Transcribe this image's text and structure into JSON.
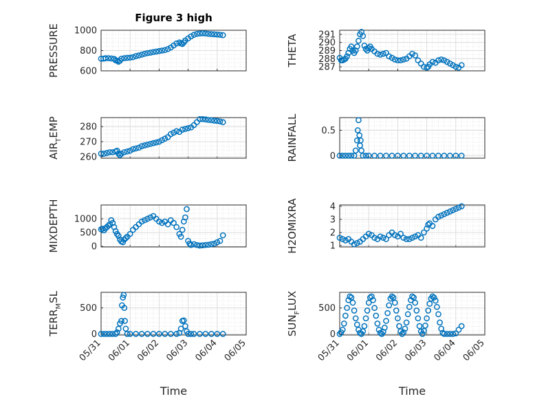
{
  "chart_data": [
    {
      "type": "scatter",
      "title": "Figure 3 high",
      "ylabel": {
        "main": "PRESSURE",
        "sub": "",
        "tail": ""
      },
      "ylim": [
        600,
        1000
      ],
      "yticks": [
        600,
        800,
        1000
      ],
      "xlim": [
        0,
        5
      ],
      "xticklabels": [],
      "xlabel": "",
      "series": [
        {
          "x": [
            0.0,
            0.08,
            0.15,
            0.25,
            0.35,
            0.45,
            0.5,
            0.55,
            0.6,
            0.65,
            0.7,
            0.8,
            0.9,
            1.0,
            1.1,
            1.2,
            1.3,
            1.4,
            1.5,
            1.6,
            1.7,
            1.8,
            1.9,
            2.0,
            2.1,
            2.2,
            2.3,
            2.4,
            2.5,
            2.6,
            2.7,
            2.75,
            2.8,
            2.85,
            2.9,
            3.0,
            3.1,
            3.2,
            3.3,
            3.4,
            3.5,
            3.6,
            3.7,
            3.8,
            3.9,
            4.0,
            4.1,
            4.2
          ],
          "y": [
            720,
            720,
            725,
            725,
            722,
            718,
            705,
            700,
            690,
            700,
            720,
            725,
            728,
            730,
            735,
            745,
            752,
            760,
            768,
            775,
            780,
            785,
            790,
            795,
            800,
            805,
            815,
            830,
            850,
            870,
            880,
            870,
            865,
            880,
            900,
            920,
            940,
            955,
            965,
            968,
            970,
            968,
            965,
            962,
            960,
            958,
            955,
            952
          ]
        }
      ]
    },
    {
      "type": "scatter",
      "title": "",
      "ylabel": {
        "main": "THETA",
        "sub": "",
        "tail": ""
      },
      "ylim": [
        286.5,
        291.5
      ],
      "yticks": [
        287,
        288,
        289,
        290,
        291
      ],
      "xlim": [
        0,
        5
      ],
      "xticklabels": [],
      "xlabel": "",
      "series": [
        {
          "x": [
            0.0,
            0.05,
            0.1,
            0.15,
            0.2,
            0.25,
            0.3,
            0.35,
            0.4,
            0.45,
            0.5,
            0.55,
            0.6,
            0.65,
            0.7,
            0.75,
            0.8,
            0.85,
            0.9,
            0.95,
            1.0,
            1.05,
            1.1,
            1.2,
            1.3,
            1.4,
            1.5,
            1.6,
            1.7,
            1.8,
            1.9,
            2.0,
            2.1,
            2.2,
            2.3,
            2.4,
            2.5,
            2.6,
            2.7,
            2.8,
            2.9,
            3.0,
            3.05,
            3.1,
            3.2,
            3.3,
            3.4,
            3.5,
            3.6,
            3.7,
            3.8,
            3.9,
            4.0,
            4.1,
            4.2
          ],
          "y": [
            288.1,
            287.8,
            287.8,
            287.9,
            288.0,
            288.3,
            288.7,
            289.2,
            289.5,
            289.0,
            288.7,
            289.0,
            289.5,
            290.2,
            291.0,
            291.3,
            290.8,
            289.6,
            289.2,
            289.0,
            289.3,
            289.5,
            289.2,
            288.9,
            288.6,
            288.5,
            288.6,
            288.7,
            288.3,
            288.1,
            287.9,
            287.8,
            287.8,
            287.9,
            288.0,
            288.3,
            288.6,
            288.4,
            287.8,
            287.4,
            287.0,
            286.9,
            287.0,
            287.3,
            287.6,
            287.5,
            287.8,
            287.9,
            287.8,
            287.6,
            287.4,
            287.2,
            287.0,
            286.9,
            287.2
          ]
        }
      ]
    },
    {
      "type": "scatter",
      "title": "",
      "ylabel": {
        "main": "AIR",
        "sub": "T",
        "tail": "EMP"
      },
      "ylim": [
        259,
        286
      ],
      "yticks": [
        260,
        270,
        280
      ],
      "xlim": [
        0,
        5
      ],
      "xticklabels": [],
      "xlabel": "",
      "series": [
        {
          "x": [
            0.0,
            0.1,
            0.2,
            0.3,
            0.4,
            0.5,
            0.55,
            0.6,
            0.65,
            0.7,
            0.8,
            0.9,
            1.0,
            1.1,
            1.2,
            1.3,
            1.4,
            1.5,
            1.6,
            1.7,
            1.8,
            1.9,
            2.0,
            2.1,
            2.2,
            2.3,
            2.4,
            2.5,
            2.6,
            2.7,
            2.8,
            2.9,
            3.0,
            3.1,
            3.2,
            3.3,
            3.4,
            3.5,
            3.6,
            3.7,
            3.8,
            3.9,
            4.0,
            4.1,
            4.2
          ],
          "y": [
            262,
            262,
            262.5,
            263,
            263,
            263.5,
            264,
            262,
            261,
            262,
            263,
            263.5,
            264,
            265,
            265.5,
            266,
            267,
            267.5,
            268,
            268.5,
            269,
            269.5,
            270,
            271,
            272,
            273,
            275,
            276,
            277,
            276.5,
            278,
            278.5,
            279,
            279.5,
            281,
            283,
            285,
            285,
            284.8,
            284.5,
            284.3,
            284,
            283.8,
            283.5,
            283
          ]
        }
      ]
    },
    {
      "type": "scatter",
      "title": "",
      "ylabel": {
        "main": "RAINFALL",
        "sub": "",
        "tail": ""
      },
      "ylim": [
        -0.05,
        0.75
      ],
      "yticks": [
        0,
        0.5
      ],
      "xlim": [
        0,
        5
      ],
      "xticklabels": [],
      "xlabel": "",
      "series": [
        {
          "x": [
            0.0,
            0.1,
            0.2,
            0.3,
            0.4,
            0.5,
            0.55,
            0.6,
            0.62,
            0.65,
            0.68,
            0.7,
            0.72,
            0.75,
            0.8,
            0.9,
            1.0,
            1.2,
            1.4,
            1.6,
            1.8,
            2.0,
            2.2,
            2.4,
            2.6,
            2.8,
            3.0,
            3.2,
            3.4,
            3.6,
            3.8,
            4.0,
            4.2
          ],
          "y": [
            0,
            0,
            0,
            0,
            0,
            0,
            0.1,
            0.3,
            0.5,
            0.7,
            0.4,
            0.2,
            0.3,
            0.1,
            0,
            0,
            0,
            0,
            0,
            0,
            0,
            0,
            0,
            0,
            0,
            0,
            0,
            0,
            0,
            0,
            0,
            0,
            0
          ]
        }
      ]
    },
    {
      "type": "scatter",
      "title": "",
      "ylabel": {
        "main": "MIXDEPTH",
        "sub": "",
        "tail": ""
      },
      "ylim": [
        -20,
        1500
      ],
      "yticks": [
        0,
        500,
        1000
      ],
      "xlim": [
        0,
        5
      ],
      "xticklabels": [],
      "xlabel": "",
      "series": [
        {
          "x": [
            0.0,
            0.05,
            0.1,
            0.15,
            0.2,
            0.25,
            0.3,
            0.35,
            0.4,
            0.45,
            0.5,
            0.55,
            0.6,
            0.65,
            0.7,
            0.75,
            0.8,
            0.85,
            0.9,
            1.0,
            1.1,
            1.2,
            1.3,
            1.4,
            1.5,
            1.6,
            1.7,
            1.8,
            1.9,
            2.0,
            2.1,
            2.2,
            2.3,
            2.4,
            2.5,
            2.6,
            2.7,
            2.75,
            2.8,
            2.85,
            2.9,
            2.95,
            3.0,
            3.05,
            3.1,
            3.2,
            3.3,
            3.4,
            3.5,
            3.6,
            3.7,
            3.8,
            3.9,
            4.0,
            4.1,
            4.2
          ],
          "y": [
            620,
            640,
            580,
            650,
            700,
            750,
            800,
            950,
            850,
            700,
            550,
            450,
            380,
            250,
            180,
            150,
            250,
            300,
            350,
            450,
            600,
            700,
            800,
            900,
            950,
            1000,
            1050,
            1100,
            1000,
            900,
            850,
            900,
            800,
            950,
            850,
            700,
            450,
            350,
            600,
            900,
            1050,
            1350,
            200,
            100,
            50,
            80,
            50,
            30,
            40,
            50,
            60,
            80,
            100,
            150,
            200,
            400
          ]
        }
      ]
    },
    {
      "type": "scatter",
      "title": "",
      "ylabel": {
        "main": "H2OMIXRA",
        "sub": "",
        "tail": ""
      },
      "ylim": [
        0.9,
        4.1
      ],
      "yticks": [
        1,
        2,
        3,
        4
      ],
      "xlim": [
        0,
        5
      ],
      "xticklabels": [],
      "xlabel": "",
      "series": [
        {
          "x": [
            0.0,
            0.1,
            0.2,
            0.3,
            0.4,
            0.5,
            0.6,
            0.7,
            0.8,
            0.9,
            1.0,
            1.1,
            1.2,
            1.3,
            1.4,
            1.5,
            1.6,
            1.7,
            1.8,
            1.9,
            2.0,
            2.1,
            2.2,
            2.3,
            2.4,
            2.5,
            2.6,
            2.7,
            2.8,
            2.9,
            3.0,
            3.05,
            3.1,
            3.2,
            3.3,
            3.4,
            3.5,
            3.6,
            3.7,
            3.8,
            3.9,
            4.0,
            4.1,
            4.2
          ],
          "y": [
            1.6,
            1.5,
            1.4,
            1.5,
            1.3,
            1.1,
            1.2,
            1.3,
            1.5,
            1.7,
            1.9,
            1.8,
            1.6,
            1.5,
            1.7,
            1.6,
            1.5,
            1.8,
            2.0,
            1.8,
            1.7,
            1.9,
            1.6,
            1.5,
            1.5,
            1.6,
            1.7,
            1.8,
            1.6,
            2.0,
            2.3,
            2.6,
            2.7,
            2.5,
            3.0,
            3.2,
            3.3,
            3.4,
            3.5,
            3.6,
            3.7,
            3.8,
            3.9,
            4.0
          ]
        }
      ]
    },
    {
      "type": "scatter",
      "title": "",
      "ylabel": {
        "main": "TERR",
        "sub": "M",
        "tail": "SL"
      },
      "ylim": [
        -20,
        800
      ],
      "yticks": [
        0,
        500
      ],
      "xlim": [
        0,
        5
      ],
      "xticklabels": [
        "05/31",
        "06/01",
        "06/02",
        "06/03",
        "06/04",
        "06/05"
      ],
      "xlabel": "Time",
      "series": [
        {
          "x": [
            0.0,
            0.1,
            0.2,
            0.3,
            0.4,
            0.5,
            0.55,
            0.6,
            0.65,
            0.7,
            0.72,
            0.75,
            0.78,
            0.8,
            0.82,
            0.85,
            0.9,
            1.0,
            1.2,
            1.4,
            1.6,
            1.8,
            2.0,
            2.2,
            2.4,
            2.6,
            2.7,
            2.75,
            2.8,
            2.85,
            2.9,
            2.95,
            3.0,
            3.1,
            3.2,
            3.4,
            3.6,
            3.8,
            4.0,
            4.2
          ],
          "y": [
            0,
            0,
            0,
            0,
            0,
            0,
            30,
            100,
            200,
            250,
            550,
            700,
            750,
            500,
            250,
            100,
            0,
            0,
            0,
            0,
            0,
            0,
            0,
            0,
            0,
            0,
            20,
            100,
            250,
            260,
            150,
            50,
            0,
            0,
            0,
            0,
            0,
            0,
            0,
            0
          ]
        }
      ]
    },
    {
      "type": "scatter",
      "title": "",
      "ylabel": {
        "main": "SUN",
        "sub": "F",
        "tail": "LUX"
      },
      "ylim": [
        -20,
        800
      ],
      "yticks": [
        0,
        500
      ],
      "xlim": [
        0,
        5
      ],
      "xticklabels": [
        "05/31",
        "06/01",
        "06/02",
        "06/03",
        "06/04",
        "06/05"
      ],
      "xlabel": "Time",
      "series": [
        {
          "x": [
            0.0,
            0.05,
            0.1,
            0.15,
            0.2,
            0.25,
            0.3,
            0.35,
            0.4,
            0.45,
            0.5,
            0.55,
            0.6,
            0.65,
            0.7,
            0.75,
            0.8,
            0.85,
            0.9,
            0.95,
            1.0,
            1.05,
            1.1,
            1.15,
            1.2,
            1.25,
            1.3,
            1.35,
            1.4,
            1.45,
            1.5,
            1.55,
            1.6,
            1.65,
            1.7,
            1.75,
            1.8,
            1.85,
            1.9,
            1.95,
            2.0,
            2.05,
            2.1,
            2.15,
            2.2,
            2.25,
            2.3,
            2.35,
            2.4,
            2.45,
            2.5,
            2.55,
            2.6,
            2.65,
            2.7,
            2.75,
            2.8,
            2.85,
            2.9,
            2.95,
            3.0,
            3.05,
            3.1,
            3.15,
            3.2,
            3.25,
            3.3,
            3.35,
            3.4,
            3.45,
            3.5,
            3.55,
            3.6,
            3.7,
            3.8,
            3.9,
            4.0,
            4.1,
            4.2
          ],
          "y": [
            0,
            30,
            80,
            200,
            350,
            500,
            650,
            720,
            700,
            600,
            450,
            300,
            180,
            80,
            20,
            0,
            50,
            150,
            300,
            450,
            600,
            700,
            720,
            650,
            500,
            350,
            200,
            80,
            20,
            0,
            40,
            120,
            250,
            400,
            550,
            680,
            720,
            700,
            600,
            450,
            300,
            150,
            50,
            0,
            30,
            100,
            220,
            380,
            520,
            650,
            720,
            700,
            600,
            450,
            300,
            150,
            50,
            0,
            60,
            160,
            300,
            450,
            580,
            680,
            720,
            700,
            640,
            520,
            380,
            220,
            100,
            20,
            0,
            0,
            0,
            0,
            10,
            80,
            150
          ]
        }
      ]
    }
  ]
}
